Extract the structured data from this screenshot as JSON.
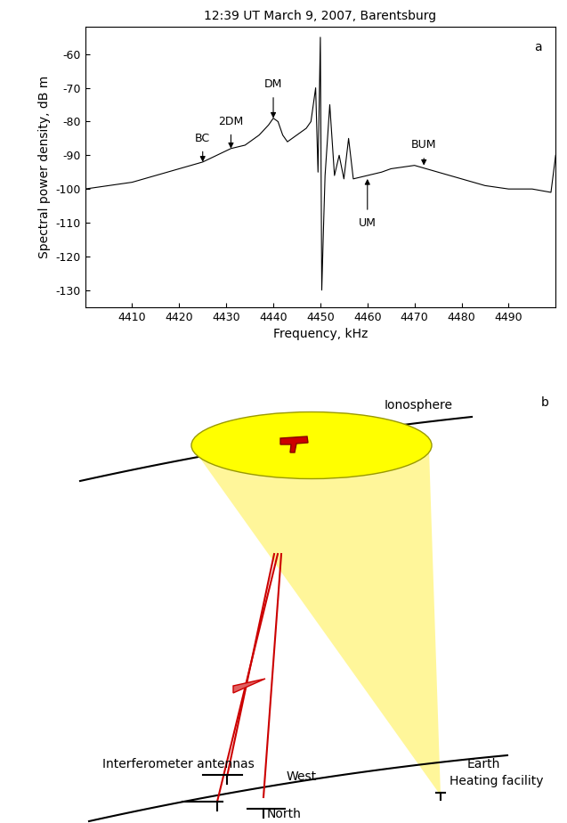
{
  "chart_data": {
    "type": "line",
    "title": "12:39 UT March 9, 2007, Barentsburg",
    "panel": "a",
    "x_label": "Frequency, kHz",
    "y_label": "Spectral power density, dB m",
    "x": [
      4400,
      4405,
      4410,
      4415,
      4420,
      4425,
      4428,
      4431,
      4434,
      4437,
      4439,
      4440,
      4441,
      4442,
      4443,
      4444,
      4445,
      4446,
      4447,
      4448,
      4449,
      4449.5,
      4450,
      4450.3,
      4450.7,
      4451,
      4452,
      4453,
      4454,
      4455,
      4456,
      4457,
      4460,
      4463,
      4465,
      4470,
      4475,
      4480,
      4485,
      4490,
      4495,
      4499,
      4500
    ],
    "values": [
      -100,
      -99,
      -98,
      -96,
      -94,
      -92,
      -90,
      -88,
      -87,
      -84,
      -81,
      -79,
      -80,
      -84,
      -86,
      -85,
      -84,
      -83,
      -82,
      -80,
      -70,
      -95,
      -55,
      -130,
      -110,
      -96,
      -75,
      -96,
      -90,
      -97,
      -85,
      -97,
      -96,
      -95,
      -94,
      -93,
      -95,
      -97,
      -99,
      -100,
      -100,
      -101,
      -90
    ],
    "color": "#000000",
    "xlim": [
      4400,
      4500
    ],
    "ylim": [
      -135,
      -52
    ],
    "xticks": [
      4410,
      4420,
      4430,
      4440,
      4450,
      4460,
      4470,
      4480,
      4490
    ],
    "yticks": [
      -60,
      -70,
      -80,
      -90,
      -100,
      -110,
      -120,
      -130
    ],
    "annotations": [
      {
        "text": "BC",
        "x": 4425,
        "y": -92,
        "text_y": -85
      },
      {
        "text": "2DM",
        "x": 4431,
        "y": -88,
        "text_y": -80
      },
      {
        "text": "DM",
        "x": 4440,
        "y": -79,
        "text_y": -69
      },
      {
        "text": "BUM",
        "x": 4472,
        "y": -93,
        "text_y": -87
      },
      {
        "text": "UM",
        "x": 4460,
        "y": -97,
        "text_y": -110
      }
    ]
  },
  "diagram": {
    "panel": "b",
    "labels": {
      "ionosphere": "Ionosphere",
      "earth": "Earth",
      "heating_facility": "Heating facility",
      "antennas": "Interferometer antennas",
      "west": "West",
      "north": "North"
    }
  }
}
